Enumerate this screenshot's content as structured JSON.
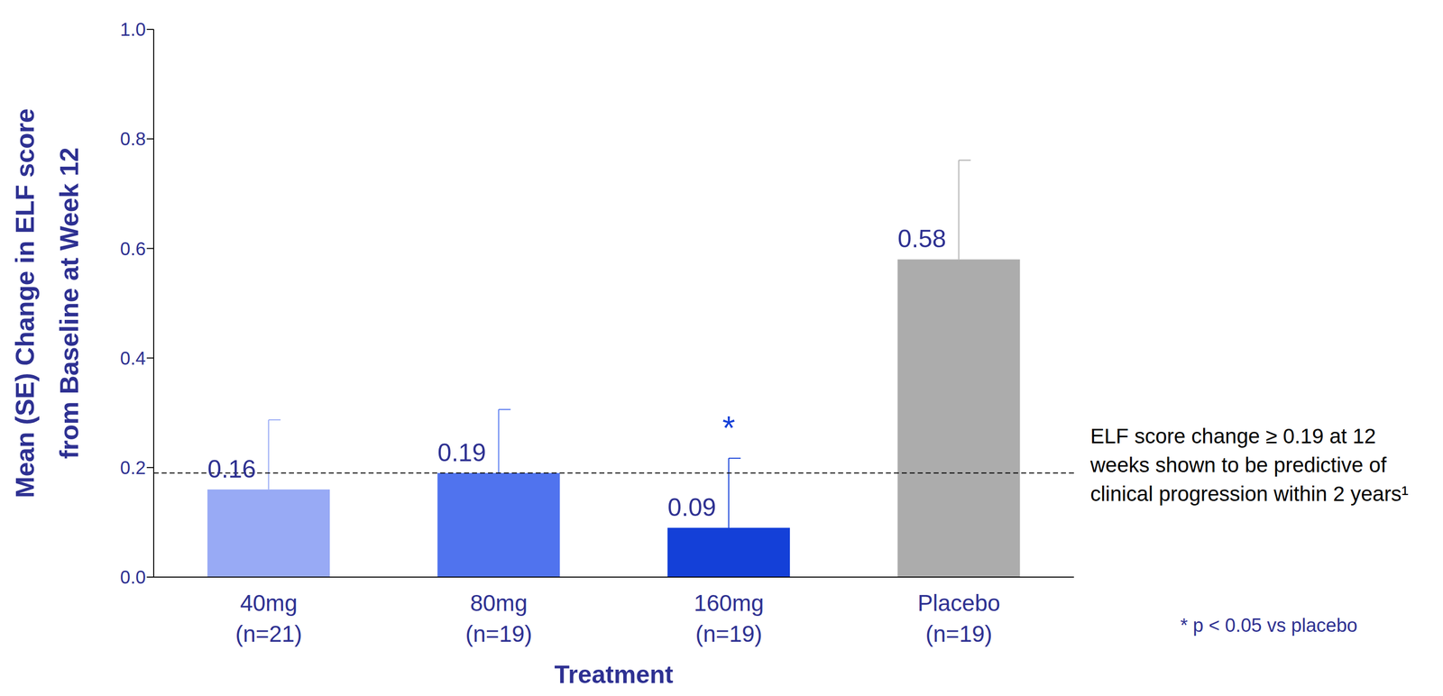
{
  "chart_data": {
    "type": "bar",
    "categories": [
      "40mg\n(n=21)",
      "80mg\n(n=19)",
      "160mg\n(n=19)",
      "Placebo\n(n=19)"
    ],
    "values": [
      0.16,
      0.19,
      0.09,
      0.58
    ],
    "errors": [
      0.127,
      0.116,
      0.127,
      0.181
    ],
    "colors": [
      "#98aaf5",
      "#5073ee",
      "#1440d8",
      "#acacac"
    ],
    "x_label": "Treatment",
    "y_label": "Mean (SE) Change in ELF score\nfrom Baseline at Week 12",
    "ylim": [
      0,
      1
    ],
    "yticks": [
      {
        "value": 0,
        "label": "0.0"
      },
      0.2,
      0.4,
      0.6,
      0.8,
      {
        "value": 1,
        "label": "1.0"
      }
    ],
    "grid": false,
    "data_labels": true,
    "significance": [
      null,
      null,
      "*",
      null
    ],
    "footnote": "* p < 0.05 vs placebo",
    "reference_line": {
      "value": 0.19,
      "label": "ELF score change ≥ 0.19 at 12 weeks shown to be predictive of clinical progression within 2 years¹",
      "line_style": "dashed"
    }
  }
}
